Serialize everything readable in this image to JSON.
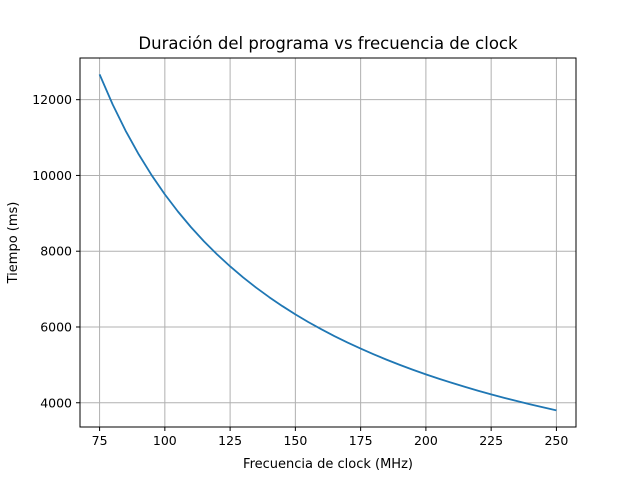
{
  "chart_data": {
    "type": "line",
    "title": "Duración del programa vs frecuencia de clock",
    "xlabel": "Frecuencia de clock (MHz)",
    "ylabel": "Tiempo (ms)",
    "xlim": [
      67.5,
      257.5
    ],
    "ylim": [
      3360,
      13100
    ],
    "xticks": [
      75,
      100,
      125,
      150,
      175,
      200,
      225,
      250
    ],
    "yticks": [
      4000,
      6000,
      8000,
      10000,
      12000
    ],
    "grid": true,
    "series": [
      {
        "name": "Tiempo",
        "color": "#1f77b4",
        "x": [
          75,
          80,
          85,
          90,
          95,
          100,
          105,
          110,
          115,
          120,
          125,
          130,
          135,
          140,
          145,
          150,
          155,
          160,
          165,
          170,
          175,
          180,
          185,
          190,
          195,
          200,
          205,
          210,
          215,
          220,
          225,
          230,
          235,
          240,
          245,
          250
        ],
        "y": [
          12667,
          11875,
          11176,
          10556,
          10000,
          9500,
          9048,
          8636,
          8261,
          7917,
          7600,
          7308,
          7037,
          6786,
          6552,
          6333,
          6129,
          5938,
          5758,
          5588,
          5429,
          5278,
          5135,
          5000,
          4872,
          4750,
          4634,
          4524,
          4419,
          4318,
          4222,
          4130,
          4043,
          3958,
          3878,
          3800
        ]
      }
    ]
  }
}
